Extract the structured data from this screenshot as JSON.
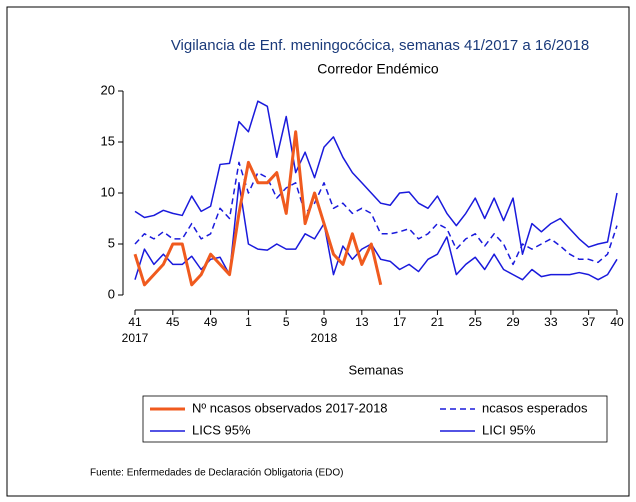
{
  "chart_data": {
    "type": "line",
    "title": "Vigilancia de Enf. meningocócica, semanas 41/2017 a 16/2018",
    "subtitle": "Corredor Endémico",
    "x_label": "Semanas",
    "source": "Fuente: Enfermedades de Declaración Obligatoria (EDO)",
    "categories": [
      "41",
      null,
      null,
      null,
      "45",
      null,
      null,
      null,
      "49",
      null,
      null,
      null,
      "1",
      null,
      null,
      null,
      "5",
      null,
      null,
      null,
      "9",
      null,
      null,
      null,
      "13",
      null,
      null,
      null,
      "17",
      null,
      null,
      null,
      "21",
      null,
      null,
      null,
      "25",
      null,
      null,
      null,
      "29",
      null,
      null,
      null,
      "33",
      null,
      null,
      null,
      "37",
      null,
      null,
      "40"
    ],
    "category_sublabels": [
      "2017",
      null,
      null,
      null,
      null,
      null,
      null,
      null,
      null,
      null,
      null,
      null,
      null,
      null,
      null,
      null,
      null,
      null,
      null,
      null,
      "2018",
      null,
      null,
      null,
      null,
      null,
      null,
      null,
      null,
      null,
      null,
      null,
      null,
      null,
      null,
      null,
      null,
      null,
      null,
      null,
      null,
      null,
      null,
      null,
      null,
      null,
      null,
      null,
      null,
      null,
      null,
      null
    ],
    "ylim": [
      0,
      20
    ],
    "yticks": [
      0,
      5,
      10,
      15,
      20
    ],
    "series": [
      {
        "name": "Nº ncasos observados 2017-2018",
        "color": "#f05a1e",
        "width": 3,
        "dashed": false,
        "values": [
          4,
          1,
          2,
          3,
          5,
          5,
          1,
          2,
          4,
          3,
          2,
          8,
          13,
          11,
          11,
          12,
          8,
          16,
          7,
          10,
          7,
          4,
          3,
          6,
          3,
          5,
          1,
          null,
          null,
          null,
          null,
          null,
          null,
          null,
          null,
          null,
          null,
          null,
          null,
          null,
          null,
          null,
          null,
          null,
          null,
          null,
          null,
          null,
          null,
          null,
          null,
          null
        ]
      },
      {
        "name": "ncasos esperados",
        "color": "#1a1adc",
        "width": 1.5,
        "dashed": true,
        "values": [
          5,
          6,
          5.5,
          6.2,
          5.5,
          5.5,
          7,
          5.5,
          6,
          8.5,
          7.5,
          13,
          10,
          12,
          11.5,
          9.5,
          10.5,
          11,
          8,
          9,
          11,
          8.5,
          9,
          8,
          8.5,
          8,
          6,
          6,
          6.2,
          6.5,
          5.5,
          6,
          7,
          6.5,
          4.5,
          5.5,
          6,
          4.8,
          6,
          5,
          3,
          5,
          4.5,
          5,
          5.5,
          4.8,
          4,
          3.5,
          3.5,
          3.2,
          4,
          6.8
        ]
      },
      {
        "name": "LICS 95%",
        "color": "#1a1adc",
        "width": 1.5,
        "dashed": false,
        "values": [
          8.2,
          7.6,
          7.8,
          8.3,
          8,
          7.8,
          9.7,
          8.2,
          8.7,
          12.8,
          12.9,
          17,
          16,
          19,
          18.5,
          13.5,
          17.5,
          12,
          14,
          11.5,
          14.5,
          15.5,
          13.5,
          12,
          11,
          10,
          9,
          8.8,
          10,
          10.1,
          9,
          8.5,
          9.7,
          8,
          6.8,
          8,
          9.5,
          7.5,
          9.5,
          7.3,
          9.5,
          4,
          7,
          6.2,
          7,
          7.5,
          6.5,
          5.5,
          4.7,
          5,
          5.2,
          10
        ]
      },
      {
        "name": "LICI 95%",
        "color": "#1a1adc",
        "width": 1.5,
        "dashed": false,
        "values": [
          1.5,
          4.5,
          3,
          4,
          3,
          3,
          3.8,
          2.5,
          3.5,
          3.7,
          2,
          11,
          5,
          4.5,
          4.4,
          5,
          4.5,
          4.5,
          6,
          5.5,
          7,
          2,
          4.8,
          3.5,
          4.5,
          5,
          3.5,
          3.3,
          2.5,
          3,
          2.3,
          3.5,
          4,
          5.7,
          2,
          3,
          3.7,
          2.5,
          4,
          2.5,
          2,
          1.5,
          2.5,
          1.8,
          2,
          2,
          2,
          2.2,
          2,
          1.5,
          2,
          3.5
        ]
      }
    ]
  }
}
